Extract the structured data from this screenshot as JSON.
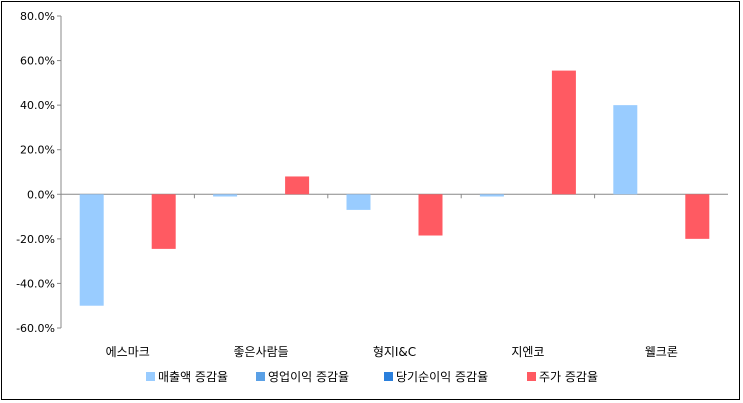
{
  "chart_data": {
    "type": "bar",
    "categories": [
      "에스마크",
      "좋은사람들",
      "형지I&C",
      "지엔코",
      "웰크론"
    ],
    "series": [
      {
        "name": "매출액 증감율",
        "color": "#99ccff",
        "values": [
          -50.0,
          -1.0,
          -7.0,
          -1.0,
          40.0
        ]
      },
      {
        "name": "영업이익 증감율",
        "color": "#5aa0e6",
        "values": [
          0,
          0,
          0,
          0,
          0
        ]
      },
      {
        "name": "당기순이익 증감율",
        "color": "#2a7fdc",
        "values": [
          0,
          0,
          0,
          0,
          0
        ]
      },
      {
        "name": "주가 증감율",
        "color": "#ff5a62",
        "values": [
          -24.5,
          8.0,
          -18.5,
          55.5,
          -20.0
        ]
      }
    ],
    "ylim": [
      -60,
      80
    ],
    "yticks": [
      -60,
      -40,
      -20,
      0,
      20,
      40,
      60,
      80
    ],
    "ytick_labels": [
      "-60.0%",
      "-40.0%",
      "-20.0%",
      "0.0%",
      "20.0%",
      "40.0%",
      "60.0%",
      "80.0%"
    ],
    "grid": false,
    "legend_position": "bottom",
    "title": "",
    "xlabel": "",
    "ylabel": ""
  }
}
